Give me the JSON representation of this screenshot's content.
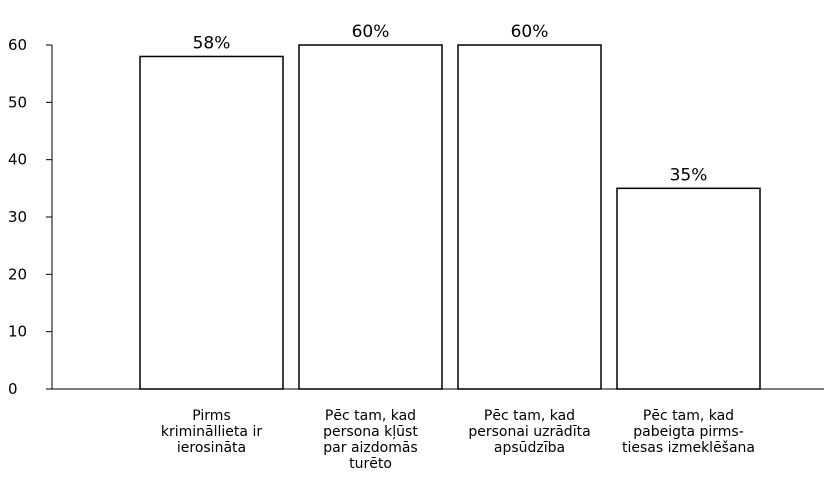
{
  "chart_data": {
    "type": "bar",
    "categories": [
      [
        "Pirms",
        "krimināllieta ir",
        "ierosināta"
      ],
      [
        "Pēc tam, kad",
        "persona kļūst",
        "par aizdomās",
        "turēto"
      ],
      [
        "Pēc tam, kad",
        "personai uzrādīta",
        "apsūdzība"
      ],
      [
        "Pēc tam, kad",
        "pabeigta pirms-",
        "tiesas izmeklēšana"
      ]
    ],
    "values": [
      58,
      60,
      60,
      35
    ],
    "data_labels": [
      "58%",
      "60%",
      "60%",
      "35%"
    ],
    "ylim": [
      0,
      60
    ],
    "yticks": [
      0,
      10,
      20,
      30,
      40,
      50,
      60
    ],
    "title": "",
    "xlabel": "",
    "ylabel": "",
    "grid": false,
    "bar_fill": "#ffffff",
    "bar_stroke": "#000000"
  }
}
